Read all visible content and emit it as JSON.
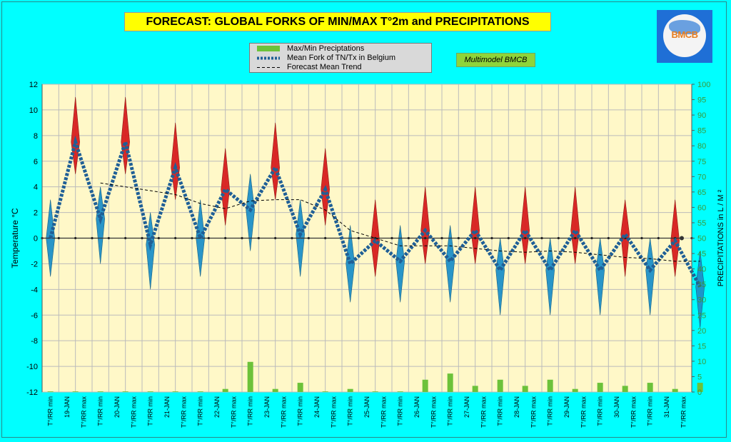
{
  "title": "FORECAST: GLOBAL FORKS OF  MIN/MAX T°2m and PRECIPITATIONS",
  "model_label": "Multimodel BMCB",
  "logo_text": "BMCB",
  "legend": [
    {
      "label": "Max/Min Preciptations",
      "kind": "bar"
    },
    {
      "label": "Mean Fork of TN/Tx in Belgium",
      "kind": "dotted"
    },
    {
      "label": "Forecast Mean Trend",
      "kind": "dashed"
    }
  ],
  "chart_data": {
    "type": "line",
    "title": "FORECAST: GLOBAL FORKS OF  MIN/MAX T°2m and PRECIPITATIONS",
    "ylabel": "Temperature  °C",
    "y2label": "PRECIPITATIONS in L / M ²",
    "ylim": [
      -12,
      12
    ],
    "y2lim": [
      0,
      100
    ],
    "yticks": [
      "12",
      "10",
      "8",
      "6",
      "4",
      "2",
      "0",
      "-2",
      "-4",
      "-6",
      "-8",
      "-10",
      "-12"
    ],
    "y2ticks": [
      "100",
      "95",
      "90",
      "85",
      "80",
      "75",
      "70",
      "65",
      "60",
      "55",
      "50",
      "45",
      "40",
      "35",
      "30",
      "25",
      "20",
      "15",
      "10",
      "5",
      "0"
    ],
    "categories": [
      "T°/RR min",
      "19-JAN",
      "T°/RR max",
      "T°/RR min",
      "20-JAN",
      "T°/RR max",
      "T°/RR min",
      "21-JAN",
      "T°/RR max",
      "T°/RR min",
      "22-JAN",
      "T°/RR max",
      "T°/RR min",
      "23-JAN",
      "T°/RR max",
      "T°/RR min",
      "24-JAN",
      "T°/RR max",
      "T°/RR min",
      "25-JAN",
      "T°/RR max",
      "T°/RR min",
      "26-JAN",
      "T°/RR max",
      "T°/RR min",
      "27-JAN",
      "T°/RR max",
      "T°/RR min",
      "28-JAN",
      "T°/RR max",
      "T°/RR min",
      "29-JAN",
      "T°/RR max",
      "T°/RR min",
      "30-JAN",
      "T°/RR max",
      "T°/RR min",
      "31-JAN",
      "T°/RR max"
    ],
    "grid": true,
    "series": [
      {
        "name": "Mean Fork of TN/Tx in Belgium",
        "kind": "temperature",
        "x": [
          0,
          1,
          2,
          3,
          4,
          5,
          6,
          7,
          8,
          9,
          10,
          11,
          12,
          13,
          14,
          15,
          16,
          17,
          18,
          19,
          20,
          21,
          22,
          23,
          24,
          25,
          26
        ],
        "values": [
          0,
          7.5,
          1.5,
          7.5,
          -0.5,
          5.5,
          0,
          3.8,
          2.2,
          5.5,
          0.3,
          3.8,
          -2,
          -0.2,
          -1.8,
          0.6,
          -1.8,
          0.6,
          -2.5,
          0.6,
          -2.5,
          0.6,
          -2.5,
          0.3,
          -2.5,
          -0.2,
          -3.8
        ],
        "fork_low": [
          -3,
          5,
          -2,
          5,
          -4,
          3,
          -3,
          1,
          -1,
          3,
          -3,
          1,
          -5,
          -3,
          -5,
          -2,
          -5,
          -2,
          -6,
          -2,
          -6,
          -2,
          -6,
          -3,
          -6,
          -3,
          -7
        ],
        "fork_high": [
          3,
          11,
          4,
          11,
          2,
          9,
          3,
          7,
          5,
          9,
          3,
          7,
          1,
          3,
          1,
          4,
          1,
          4,
          0,
          4,
          0,
          4,
          0,
          3,
          0,
          3,
          -1
        ]
      },
      {
        "name": "Forecast Mean Trend",
        "kind": "trend",
        "x": [
          2,
          3,
          4,
          5,
          6,
          7,
          8,
          9,
          10,
          11,
          12,
          13,
          14,
          15,
          16,
          17,
          18,
          19,
          20,
          21,
          22,
          23,
          24,
          25,
          26
        ],
        "values": [
          4.3,
          4.0,
          3.7,
          3.4,
          2.7,
          2.3,
          2.9,
          3.0,
          3.0,
          2.2,
          0.6,
          0.0,
          -0.6,
          -0.6,
          -0.6,
          -0.8,
          -1.0,
          -1.1,
          -1.0,
          -1.1,
          -1.3,
          -1.5,
          -1.6,
          -1.8,
          -1.8
        ]
      },
      {
        "name": "Max/Min Preciptations",
        "kind": "precipitation",
        "x": [
          0,
          1,
          2,
          3,
          4,
          5,
          6,
          7,
          8,
          9,
          10,
          11,
          12,
          13,
          14,
          15,
          16,
          17,
          18,
          19,
          20,
          21,
          22,
          23,
          24,
          25,
          26
        ],
        "values": [
          0.2,
          0.2,
          0.2,
          0.2,
          0.2,
          0.2,
          0.2,
          1.0,
          9.8,
          1.0,
          3.0,
          0.2,
          1.0,
          0.2,
          0.2,
          4.0,
          6.0,
          2.0,
          4.0,
          2.0,
          4.0,
          1.0,
          3.0,
          2.0,
          3.0,
          1.0,
          3.0
        ]
      }
    ]
  },
  "colors": {
    "plot_bg": "#fff8c8",
    "min_spike": "#1e90c8",
    "max_spike": "#d81e1e",
    "fork_line": "#1f5f96",
    "trend": "#000000",
    "precip": "#6cc23a"
  }
}
